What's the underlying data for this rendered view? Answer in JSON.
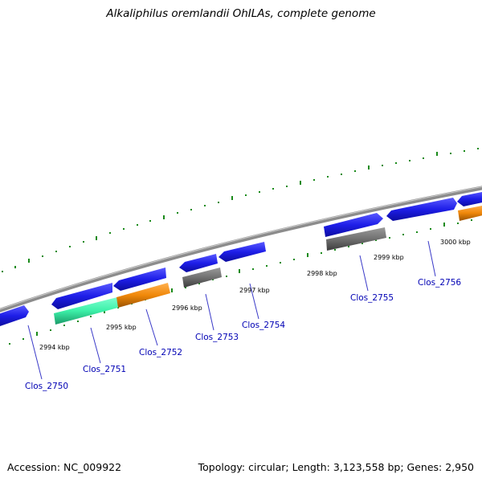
{
  "title": "Alkaliphilus oremlandii OhILAs, complete genome",
  "footer": {
    "accession": "Accession: NC_009922",
    "summary": "Topology: circular; Length: 3,123,558 bp; Genes: 2,950"
  },
  "colors": {
    "backbone": "#8c8c8c",
    "tick": "#1a8a1a",
    "label": "#0000b4",
    "leader": "#3a3ac8",
    "gene_cds": "#1e1ee8",
    "gene_teal": "#3cf0a8",
    "gene_orange": "#f0880a",
    "gene_gray": "#707070"
  },
  "kbp_labels": [
    "2994 kbp",
    "2995 kbp",
    "2996 kbp",
    "2997 kbp",
    "2998 kbp",
    "2999 kbp",
    "3000 kbp"
  ],
  "gene_labels": [
    "Clos_2750",
    "Clos_2751",
    "Clos_2752",
    "Clos_2753",
    "Clos_2754",
    "Clos_2755",
    "Clos_2756"
  ]
}
